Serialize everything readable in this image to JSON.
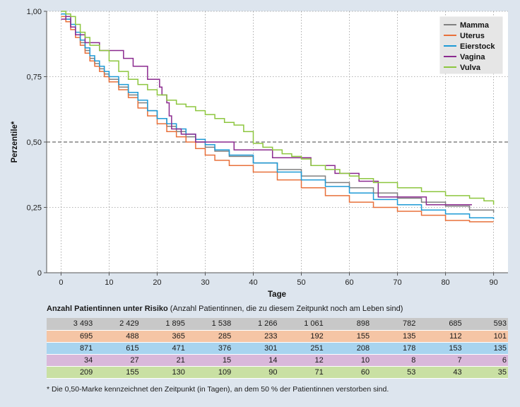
{
  "chart_data": {
    "type": "line",
    "step": true,
    "ylabel": "Perzentile*",
    "xlabel": "Tage",
    "xlim": [
      -3,
      93
    ],
    "ylim": [
      0,
      1.0
    ],
    "x_ticks": [
      0,
      10,
      20,
      30,
      40,
      50,
      60,
      70,
      80,
      90
    ],
    "y_ticks": [
      0,
      0.25,
      0.5,
      0.75,
      1.0
    ],
    "y_tick_labels": [
      "0",
      "0,25",
      "0,50",
      "0,75",
      "1,00"
    ],
    "grid": "vertical dotted lines at x ticks; horizontal dotted lines at y ticks",
    "reference_line": {
      "y": 0.5,
      "style": "dashed"
    },
    "legend_position": "top-right",
    "series": [
      {
        "name": "Mamma",
        "color": "#808080",
        "points": [
          [
            0,
            0.99
          ],
          [
            1,
            0.97
          ],
          [
            2,
            0.94
          ],
          [
            3,
            0.91
          ],
          [
            4,
            0.88
          ],
          [
            5,
            0.85
          ],
          [
            6,
            0.82
          ],
          [
            7,
            0.8
          ],
          [
            8,
            0.78
          ],
          [
            9,
            0.76
          ],
          [
            10,
            0.74
          ],
          [
            12,
            0.71
          ],
          [
            14,
            0.68
          ],
          [
            16,
            0.65
          ],
          [
            18,
            0.62
          ],
          [
            20,
            0.59
          ],
          [
            22,
            0.56
          ],
          [
            24,
            0.54
          ],
          [
            26,
            0.52
          ],
          [
            28,
            0.5
          ],
          [
            30,
            0.48
          ],
          [
            32,
            0.465
          ],
          [
            35,
            0.445
          ],
          [
            40,
            0.42
          ],
          [
            45,
            0.395
          ],
          [
            50,
            0.37
          ],
          [
            55,
            0.345
          ],
          [
            60,
            0.325
          ],
          [
            65,
            0.305
          ],
          [
            70,
            0.285
          ],
          [
            75,
            0.27
          ],
          [
            80,
            0.255
          ],
          [
            85,
            0.24
          ],
          [
            90,
            0.23
          ]
        ]
      },
      {
        "name": "Uterus",
        "color": "#e8703a",
        "points": [
          [
            0,
            0.98
          ],
          [
            1,
            0.96
          ],
          [
            2,
            0.93
          ],
          [
            3,
            0.9
          ],
          [
            4,
            0.87
          ],
          [
            5,
            0.84
          ],
          [
            6,
            0.81
          ],
          [
            7,
            0.79
          ],
          [
            8,
            0.77
          ],
          [
            9,
            0.75
          ],
          [
            10,
            0.73
          ],
          [
            12,
            0.7
          ],
          [
            14,
            0.67
          ],
          [
            16,
            0.63
          ],
          [
            18,
            0.6
          ],
          [
            20,
            0.57
          ],
          [
            22,
            0.54
          ],
          [
            24,
            0.52
          ],
          [
            26,
            0.5
          ],
          [
            28,
            0.475
          ],
          [
            30,
            0.45
          ],
          [
            32,
            0.43
          ],
          [
            35,
            0.41
          ],
          [
            40,
            0.385
          ],
          [
            45,
            0.355
          ],
          [
            50,
            0.325
          ],
          [
            55,
            0.295
          ],
          [
            60,
            0.27
          ],
          [
            65,
            0.25
          ],
          [
            70,
            0.235
          ],
          [
            75,
            0.22
          ],
          [
            80,
            0.2
          ],
          [
            85,
            0.195
          ],
          [
            90,
            0.195
          ]
        ]
      },
      {
        "name": "Eierstock",
        "color": "#1e9ad6",
        "points": [
          [
            0,
            0.99
          ],
          [
            1,
            0.97
          ],
          [
            2,
            0.95
          ],
          [
            3,
            0.92
          ],
          [
            4,
            0.89
          ],
          [
            5,
            0.86
          ],
          [
            6,
            0.83
          ],
          [
            7,
            0.81
          ],
          [
            8,
            0.79
          ],
          [
            9,
            0.77
          ],
          [
            10,
            0.75
          ],
          [
            12,
            0.72
          ],
          [
            14,
            0.69
          ],
          [
            16,
            0.66
          ],
          [
            18,
            0.62
          ],
          [
            20,
            0.59
          ],
          [
            22,
            0.57
          ],
          [
            24,
            0.55
          ],
          [
            26,
            0.53
          ],
          [
            28,
            0.51
          ],
          [
            30,
            0.49
          ],
          [
            32,
            0.47
          ],
          [
            35,
            0.45
          ],
          [
            40,
            0.42
          ],
          [
            45,
            0.385
          ],
          [
            50,
            0.355
          ],
          [
            55,
            0.33
          ],
          [
            60,
            0.305
          ],
          [
            65,
            0.28
          ],
          [
            70,
            0.26
          ],
          [
            75,
            0.24
          ],
          [
            80,
            0.225
          ],
          [
            85,
            0.21
          ],
          [
            90,
            0.205
          ]
        ]
      },
      {
        "name": "Vagina",
        "color": "#8b2a8f",
        "points": [
          [
            0,
            0.97
          ],
          [
            1,
            0.98
          ],
          [
            2,
            0.94
          ],
          [
            3,
            0.91
          ],
          [
            4,
            0.91
          ],
          [
            5,
            0.88
          ],
          [
            7,
            0.88
          ],
          [
            8,
            0.85
          ],
          [
            12,
            0.85
          ],
          [
            13,
            0.82
          ],
          [
            14,
            0.82
          ],
          [
            15,
            0.79
          ],
          [
            17,
            0.79
          ],
          [
            18,
            0.74
          ],
          [
            20,
            0.74
          ],
          [
            20.5,
            0.71
          ],
          [
            21,
            0.68
          ],
          [
            22,
            0.65
          ],
          [
            22.5,
            0.6
          ],
          [
            23,
            0.55
          ],
          [
            25,
            0.53
          ],
          [
            28,
            0.5
          ],
          [
            35,
            0.5
          ],
          [
            36,
            0.47
          ],
          [
            42,
            0.47
          ],
          [
            44,
            0.44
          ],
          [
            50,
            0.44
          ],
          [
            52,
            0.41
          ],
          [
            55,
            0.41
          ],
          [
            57,
            0.38
          ],
          [
            61,
            0.38
          ],
          [
            62,
            0.35
          ],
          [
            65,
            0.35
          ],
          [
            66,
            0.29
          ],
          [
            75,
            0.29
          ],
          [
            76,
            0.26
          ],
          [
            85,
            0.26
          ],
          [
            85.5,
            0.26
          ]
        ]
      },
      {
        "name": "Vulva",
        "color": "#8dc63f",
        "points": [
          [
            0,
            1.0
          ],
          [
            1,
            0.99
          ],
          [
            2,
            0.98
          ],
          [
            3,
            0.95
          ],
          [
            4,
            0.92
          ],
          [
            5,
            0.9
          ],
          [
            6,
            0.87
          ],
          [
            8,
            0.85
          ],
          [
            10,
            0.81
          ],
          [
            12,
            0.77
          ],
          [
            14,
            0.74
          ],
          [
            16,
            0.72
          ],
          [
            18,
            0.7
          ],
          [
            20,
            0.68
          ],
          [
            22,
            0.66
          ],
          [
            24,
            0.645
          ],
          [
            26,
            0.635
          ],
          [
            28,
            0.62
          ],
          [
            30,
            0.605
          ],
          [
            32,
            0.59
          ],
          [
            34,
            0.575
          ],
          [
            36,
            0.565
          ],
          [
            38,
            0.54
          ],
          [
            40,
            0.495
          ],
          [
            42,
            0.48
          ],
          [
            44,
            0.47
          ],
          [
            46,
            0.455
          ],
          [
            48,
            0.445
          ],
          [
            50,
            0.435
          ],
          [
            52,
            0.41
          ],
          [
            55,
            0.395
          ],
          [
            58,
            0.38
          ],
          [
            60,
            0.37
          ],
          [
            62,
            0.36
          ],
          [
            65,
            0.345
          ],
          [
            70,
            0.325
          ],
          [
            75,
            0.31
          ],
          [
            80,
            0.295
          ],
          [
            85,
            0.285
          ],
          [
            88,
            0.275
          ],
          [
            90,
            0.26
          ]
        ]
      }
    ]
  },
  "risk_table": {
    "title_bold": "Anzahl Patientinnen unter Risiko",
    "title_rest": " (Anzahl Patientinnen, die zu diesem Zeitpunkt noch am Leben sind)",
    "rows": [
      {
        "series": "Mamma",
        "bg": "#c8c8c8",
        "values": [
          "3 493",
          "2 429",
          "1 895",
          "1 538",
          "1 266",
          "1 061",
          "898",
          "782",
          "685",
          "593"
        ]
      },
      {
        "series": "Uterus",
        "bg": "#f5c5a5",
        "values": [
          "695",
          "488",
          "365",
          "285",
          "233",
          "192",
          "155",
          "135",
          "112",
          "101"
        ]
      },
      {
        "series": "Eierstock",
        "bg": "#a8d4ef",
        "values": [
          "871",
          "615",
          "471",
          "376",
          "301",
          "251",
          "208",
          "178",
          "153",
          "135"
        ]
      },
      {
        "series": "Vagina",
        "bg": "#d9b8da",
        "values": [
          "34",
          "27",
          "21",
          "15",
          "14",
          "12",
          "10",
          "8",
          "7",
          "6"
        ]
      },
      {
        "series": "Vulva",
        "bg": "#c9e0a3",
        "values": [
          "209",
          "155",
          "130",
          "109",
          "90",
          "71",
          "60",
          "53",
          "43",
          "35"
        ]
      }
    ]
  },
  "footnote": "* Die 0,50-Marke kennzeichnet den Zeitpunkt (in Tagen), an dem 50 % der Patientinnen verstorben sind."
}
